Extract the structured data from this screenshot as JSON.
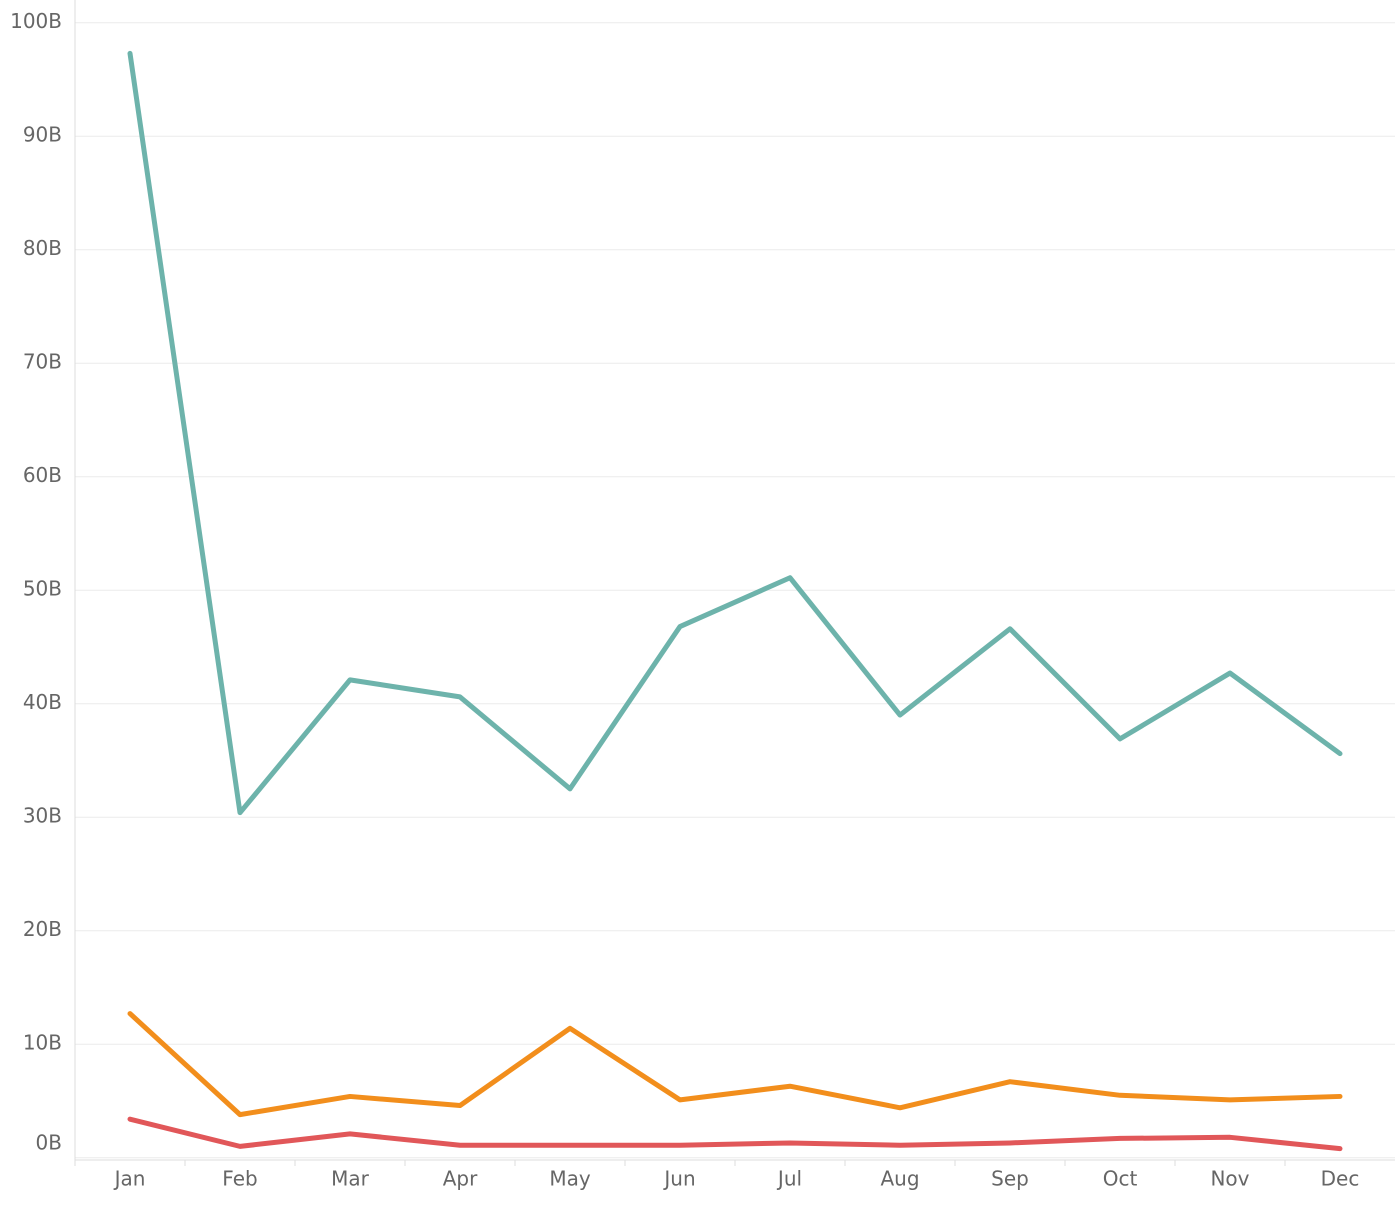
{
  "chart_data": {
    "type": "line",
    "categories": [
      "Jan",
      "Feb",
      "Mar",
      "Apr",
      "May",
      "Jun",
      "Jul",
      "Aug",
      "Sep",
      "Oct",
      "Nov",
      "Dec"
    ],
    "series": [
      {
        "color": "#6db3ab",
        "values": [
          97.3,
          30.4,
          42.1,
          40.6,
          32.5,
          46.8,
          51.1,
          39.0,
          46.6,
          36.9,
          42.7,
          35.6
        ]
      },
      {
        "color": "#f28e1c",
        "values": [
          12.7,
          3.8,
          5.4,
          4.6,
          11.4,
          5.1,
          6.3,
          4.4,
          6.7,
          5.5,
          5.1,
          5.4
        ]
      },
      {
        "color": "#e15759",
        "values": [
          3.4,
          1.0,
          2.1,
          1.1,
          1.1,
          1.1,
          1.3,
          1.1,
          1.3,
          1.7,
          1.8,
          0.8
        ]
      }
    ],
    "ylim": [
      -0.2,
      102
    ],
    "yticks": [
      {
        "value": 0,
        "label": "0B"
      },
      {
        "value": 10,
        "label": "10B"
      },
      {
        "value": 20,
        "label": "20B"
      },
      {
        "value": 30,
        "label": "30B"
      },
      {
        "value": 40,
        "label": "40B"
      },
      {
        "value": 50,
        "label": "50B"
      },
      {
        "value": 60,
        "label": "60B"
      },
      {
        "value": 70,
        "label": "70B"
      },
      {
        "value": 80,
        "label": "80B"
      },
      {
        "value": 90,
        "label": "90B"
      },
      {
        "value": 100,
        "label": "100B"
      }
    ],
    "grid": true
  }
}
